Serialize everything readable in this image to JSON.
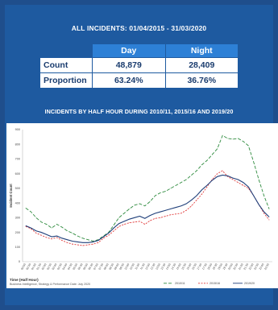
{
  "header": {
    "title": "ALL INCIDENTS: 01/04/2015 - 31/03/2020"
  },
  "table": {
    "columns": [
      "Day",
      "Night"
    ],
    "rows": [
      {
        "label": "Count",
        "day": "48,879",
        "night": "28,409"
      },
      {
        "label": "Proportion",
        "day": "63.24%",
        "night": "36.76%"
      }
    ]
  },
  "footnote": "Business Intelligence, Strategy & Performance   Date: July 2020",
  "chart_data": {
    "type": "line",
    "title": "INCIDENTS BY HALF HOUR DURING 2010/11, 2015/16 AND 2019/20",
    "xlabel": "Time (Half Hour)",
    "ylabel": "Incident Count",
    "ylim": [
      0,
      900
    ],
    "yticks": [
      0,
      100,
      200,
      300,
      400,
      500,
      600,
      700,
      800,
      900
    ],
    "categories": [
      "00:00",
      "00:30",
      "01:00",
      "01:30",
      "02:00",
      "02:30",
      "03:00",
      "03:30",
      "04:00",
      "04:30",
      "05:00",
      "05:30",
      "06:00",
      "06:30",
      "07:00",
      "07:30",
      "08:00",
      "08:30",
      "09:00",
      "09:30",
      "10:00",
      "10:30",
      "11:00",
      "11:30",
      "12:00",
      "12:30",
      "13:00",
      "13:30",
      "14:00",
      "14:30",
      "15:00",
      "15:30",
      "16:00",
      "16:30",
      "17:00",
      "17:30",
      "18:00",
      "18:30",
      "19:00",
      "19:30",
      "20:00",
      "20:30",
      "21:00",
      "21:30",
      "22:00",
      "22:30",
      "23:00",
      "23:30"
    ],
    "series": [
      {
        "name": "2010/11",
        "color": "#2e8b3e",
        "dash": "4,2",
        "values": [
          365,
          340,
          300,
          270,
          255,
          230,
          255,
          235,
          210,
          195,
          175,
          160,
          150,
          140,
          150,
          175,
          200,
          250,
          300,
          330,
          360,
          385,
          395,
          380,
          410,
          450,
          470,
          480,
          500,
          520,
          540,
          560,
          590,
          620,
          660,
          690,
          730,
          770,
          860,
          840,
          835,
          840,
          820,
          790,
          680,
          560,
          450,
          360
        ]
      },
      {
        "name": "2015/16",
        "color": "#e03a3a",
        "dash": "2,1.5",
        "values": [
          240,
          225,
          195,
          180,
          165,
          155,
          165,
          145,
          130,
          120,
          115,
          110,
          115,
          120,
          130,
          160,
          180,
          210,
          240,
          255,
          265,
          270,
          275,
          255,
          280,
          295,
          300,
          310,
          320,
          325,
          330,
          350,
          380,
          420,
          460,
          510,
          560,
          600,
          620,
          580,
          560,
          540,
          520,
          500,
          450,
          390,
          330,
          285
        ]
      },
      {
        "name": "2019/20",
        "color": "#1f3f7a",
        "dash": "",
        "values": [
          245,
          230,
          210,
          200,
          185,
          170,
          175,
          160,
          150,
          140,
          135,
          130,
          130,
          135,
          145,
          170,
          195,
          230,
          260,
          275,
          290,
          300,
          310,
          295,
          315,
          330,
          340,
          350,
          360,
          370,
          380,
          395,
          420,
          450,
          490,
          520,
          555,
          580,
          590,
          585,
          570,
          560,
          540,
          510,
          450,
          390,
          340,
          305
        ]
      }
    ],
    "legend_position": "bottom-right",
    "grid": false
  }
}
